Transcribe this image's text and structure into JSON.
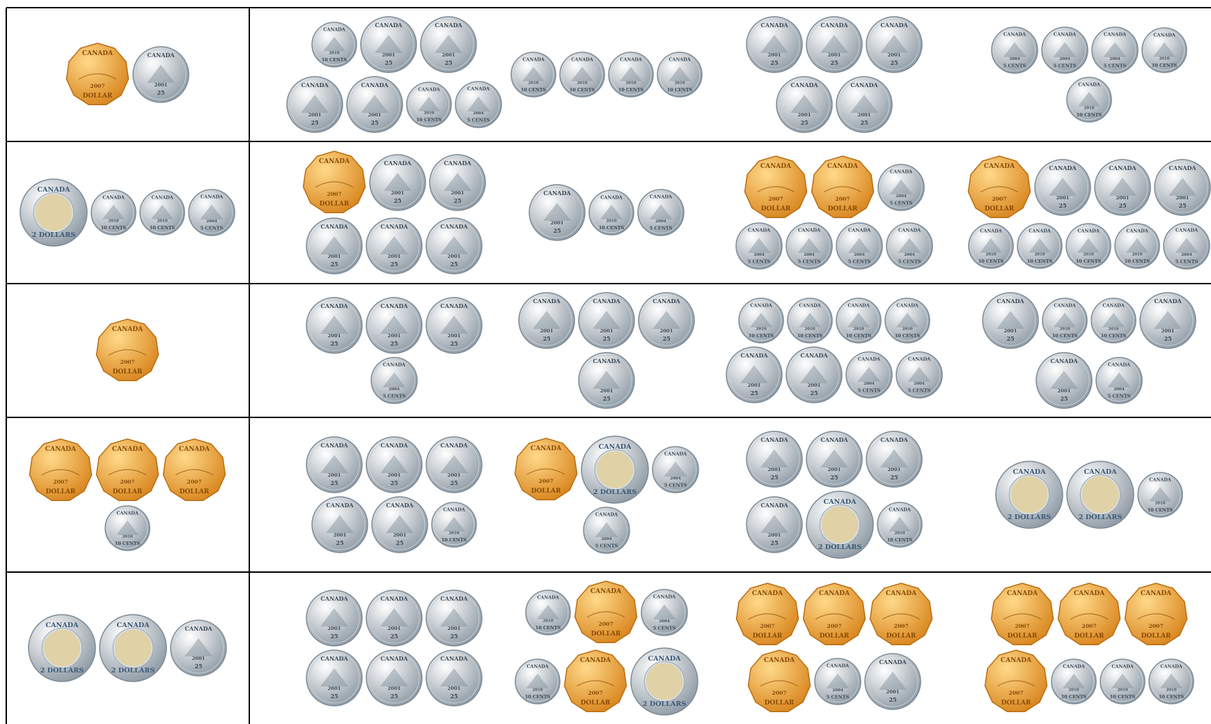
{
  "coins": [
    {
      "denomination": "DOLLAR",
      "year": "2007",
      "country": "CANADA",
      "color": "#f2a93b"
    },
    {
      "denomination": "2 DOLLARS",
      "country": "CANADA",
      "color": "#d6dee4"
    },
    {
      "denomination": "25",
      "year": "2001",
      "country": "CANADA",
      "color": "#c8d0d7"
    },
    {
      "denomination": "10 CENTS",
      "year": "2010",
      "country": "CANADA",
      "color": "#cdd4da"
    },
    {
      "denomination": "5 CENTS",
      "year": "2004",
      "country": "CANADA",
      "color": "#c4ccd3"
    }
  ],
  "table": {
    "rows": [
      {
        "cells": [
          [
            [
              "DOLLAR",
              "25"
            ]
          ],
          [
            [
              "10 CENTS",
              "25",
              "25"
            ],
            [
              "25",
              "25",
              "10 CENTS",
              "5 CENTS"
            ]
          ],
          [
            [
              "10 CENTS",
              "10 CENTS",
              "10 CENTS",
              "10 CENTS"
            ]
          ],
          [
            [
              "25",
              "25",
              "25"
            ],
            [
              "25",
              "25"
            ]
          ],
          [
            [
              "5 CENTS",
              "5 CENTS",
              "5 CENTS",
              "10 CENTS"
            ],
            [
              "10 CENTS"
            ]
          ]
        ]
      },
      {
        "cells": [
          [
            [
              "2 DOLLARS",
              "10 CENTS",
              "10 CENTS",
              "5 CENTS"
            ]
          ],
          [
            [
              "DOLLAR",
              "25",
              "25"
            ],
            [
              "25",
              "25",
              "25"
            ]
          ],
          [
            [
              "25",
              "10 CENTS",
              "5 CENTS"
            ]
          ],
          [
            [
              "DOLLAR",
              "DOLLAR",
              "5 CENTS"
            ],
            [
              "5 CENTS",
              "5 CENTS",
              "5 CENTS",
              "5 CENTS"
            ]
          ],
          [
            [
              "DOLLAR",
              "25",
              "25",
              "25"
            ],
            [
              "10 CENTS",
              "10 CENTS",
              "10 CENTS",
              "10 CENTS",
              "5 CENTS"
            ]
          ]
        ]
      },
      {
        "cells": [
          [
            [
              "DOLLAR"
            ]
          ],
          [
            [
              "25",
              "25",
              "25"
            ],
            [
              "5 CENTS"
            ]
          ],
          [
            [
              "25",
              "25",
              "25"
            ],
            [
              "25"
            ]
          ],
          [
            [
              "10 CENTS",
              "10 CENTS",
              "10 CENTS",
              "10 CENTS"
            ],
            [
              "25",
              "25",
              "5 CENTS",
              "5 CENTS"
            ]
          ],
          [
            [
              "25",
              "10 CENTS",
              "10 CENTS",
              "25"
            ],
            [
              "25",
              "5 CENTS"
            ]
          ]
        ]
      },
      {
        "cells": [
          [
            [
              "DOLLAR",
              "DOLLAR",
              "DOLLAR"
            ],
            [
              "10 CENTS"
            ]
          ],
          [
            [
              "25",
              "25",
              "25"
            ],
            [
              "25",
              "25",
              "10 CENTS"
            ]
          ],
          [
            [
              "DOLLAR",
              "2 DOLLARS",
              "5 CENTS"
            ],
            [
              "5 CENTS"
            ]
          ],
          [
            [
              "25",
              "25",
              "25"
            ],
            [
              "25",
              "2 DOLLARS",
              "10 CENTS"
            ]
          ],
          [
            [
              "2 DOLLARS",
              "2 DOLLARS",
              "10 CENTS"
            ]
          ]
        ]
      },
      {
        "cells": [
          [
            [
              "2 DOLLARS",
              "2 DOLLARS",
              "25"
            ]
          ],
          [
            [
              "25",
              "25",
              "25"
            ],
            [
              "25",
              "25",
              "25"
            ]
          ],
          [
            [
              "10 CENTS",
              "DOLLAR",
              "5 CENTS"
            ],
            [
              "10 CENTS",
              "DOLLAR",
              "2 DOLLARS"
            ]
          ],
          [
            [
              "DOLLAR",
              "DOLLAR",
              "DOLLAR"
            ],
            [
              "DOLLAR",
              "5 CENTS",
              "25"
            ]
          ],
          [
            [
              "DOLLAR",
              "DOLLAR",
              "DOLLAR"
            ],
            [
              "DOLLAR",
              "10 CENTS",
              "10 CENTS",
              "10 CENTS"
            ]
          ]
        ]
      }
    ]
  }
}
